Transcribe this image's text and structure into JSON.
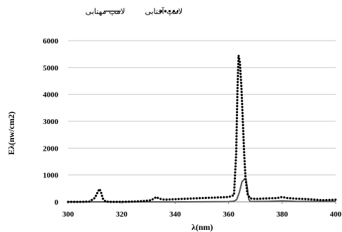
{
  "chart_data": {
    "type": "line",
    "xlabel": "λ(nm)",
    "ylabel": "Eλ(nw/cm2)",
    "xlim": [
      300,
      400
    ],
    "ylim": [
      0,
      6000
    ],
    "x_ticks": [
      300,
      320,
      340,
      360,
      380,
      400
    ],
    "y_ticks": [
      0,
      1000,
      2000,
      3000,
      4000,
      5000,
      6000
    ],
    "grid": "horizontal",
    "legend_position": "top",
    "series": [
      {
        "name": "لامپ مهتابی",
        "style": "solid",
        "color": "#555555",
        "points": [
          [
            300,
            0
          ],
          [
            320,
            0
          ],
          [
            340,
            0
          ],
          [
            355,
            5
          ],
          [
            360,
            10
          ],
          [
            362,
            25
          ],
          [
            363,
            80
          ],
          [
            364,
            350
          ],
          [
            365,
            750
          ],
          [
            366,
            860
          ],
          [
            366.5,
            820
          ],
          [
            367,
            500
          ],
          [
            367.5,
            100
          ],
          [
            368,
            20
          ],
          [
            370,
            15
          ],
          [
            375,
            20
          ],
          [
            380,
            40
          ],
          [
            385,
            20
          ],
          [
            390,
            15
          ],
          [
            395,
            15
          ],
          [
            400,
            20
          ]
        ]
      },
      {
        "name": "لامپ آفتابی",
        "style": "dotted",
        "color": "#000000",
        "points": [
          [
            300,
            0
          ],
          [
            305,
            0
          ],
          [
            308,
            10
          ],
          [
            310,
            150
          ],
          [
            311,
            350
          ],
          [
            311.7,
            480
          ],
          [
            312.3,
            350
          ],
          [
            313,
            120
          ],
          [
            314,
            10
          ],
          [
            316,
            0
          ],
          [
            320,
            0
          ],
          [
            324,
            10
          ],
          [
            328,
            30
          ],
          [
            331,
            60
          ],
          [
            333,
            180
          ],
          [
            334,
            120
          ],
          [
            336,
            80
          ],
          [
            340,
            100
          ],
          [
            345,
            120
          ],
          [
            350,
            140
          ],
          [
            355,
            160
          ],
          [
            360,
            180
          ],
          [
            362,
            250
          ],
          [
            362.8,
            1800
          ],
          [
            363.3,
            4200
          ],
          [
            363.7,
            5450
          ],
          [
            364.2,
            5200
          ],
          [
            364.8,
            4200
          ],
          [
            365.3,
            3000
          ],
          [
            365.8,
            1800
          ],
          [
            366.3,
            900
          ],
          [
            367,
            300
          ],
          [
            368,
            130
          ],
          [
            370,
            110
          ],
          [
            375,
            130
          ],
          [
            378,
            140
          ],
          [
            380,
            180
          ],
          [
            382,
            140
          ],
          [
            385,
            120
          ],
          [
            390,
            100
          ],
          [
            395,
            60
          ],
          [
            400,
            80
          ]
        ]
      }
    ]
  }
}
